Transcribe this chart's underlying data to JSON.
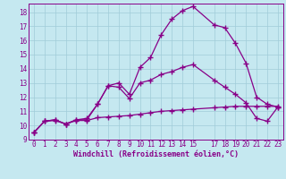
{
  "background_color": "#c5e8f0",
  "grid_color": "#a0ccd8",
  "line_color": "#880088",
  "marker": "+",
  "markersize": 4,
  "linewidth": 0.9,
  "markeredgewidth": 1.0,
  "xlim": [
    -0.5,
    23.5
  ],
  "ylim": [
    9,
    18.6
  ],
  "xticks": [
    0,
    1,
    2,
    3,
    4,
    5,
    6,
    7,
    8,
    9,
    10,
    11,
    12,
    13,
    14,
    15,
    17,
    18,
    19,
    20,
    21,
    22,
    23
  ],
  "yticks": [
    9,
    10,
    11,
    12,
    13,
    14,
    15,
    16,
    17,
    18
  ],
  "xlabel": "Windchill (Refroidissement éolien,°C)",
  "xlabel_fontsize": 6.0,
  "tick_fontsize": 5.5,
  "line1_x": [
    0,
    1,
    2,
    3,
    4,
    5,
    6,
    7,
    8,
    9,
    10,
    11,
    12,
    13,
    14,
    15,
    17,
    18,
    19,
    20,
    21,
    22,
    23
  ],
  "line1_y": [
    9.5,
    10.3,
    10.4,
    10.1,
    10.4,
    10.4,
    11.5,
    12.8,
    13.0,
    12.2,
    14.1,
    14.8,
    16.4,
    17.5,
    18.1,
    18.4,
    17.1,
    16.9,
    15.8,
    14.4,
    12.0,
    11.5,
    11.3
  ],
  "line2_x": [
    0,
    1,
    2,
    3,
    4,
    5,
    6,
    7,
    8,
    9,
    10,
    11,
    12,
    13,
    14,
    15,
    17,
    18,
    19,
    20,
    21,
    22,
    23
  ],
  "line2_y": [
    9.5,
    10.3,
    10.4,
    10.1,
    10.4,
    10.5,
    11.5,
    12.8,
    12.7,
    11.9,
    13.0,
    13.2,
    13.6,
    13.8,
    14.1,
    14.3,
    13.2,
    12.7,
    12.2,
    11.6,
    10.5,
    10.3,
    11.3
  ],
  "line3_x": [
    0,
    1,
    2,
    3,
    4,
    5,
    6,
    7,
    8,
    9,
    10,
    11,
    12,
    13,
    14,
    15,
    17,
    18,
    19,
    20,
    21,
    22,
    23
  ],
  "line3_y": [
    9.5,
    10.3,
    10.35,
    10.1,
    10.35,
    10.35,
    10.55,
    10.6,
    10.65,
    10.7,
    10.8,
    10.9,
    11.0,
    11.05,
    11.1,
    11.15,
    11.25,
    11.3,
    11.35,
    11.35,
    11.35,
    11.35,
    11.35
  ]
}
